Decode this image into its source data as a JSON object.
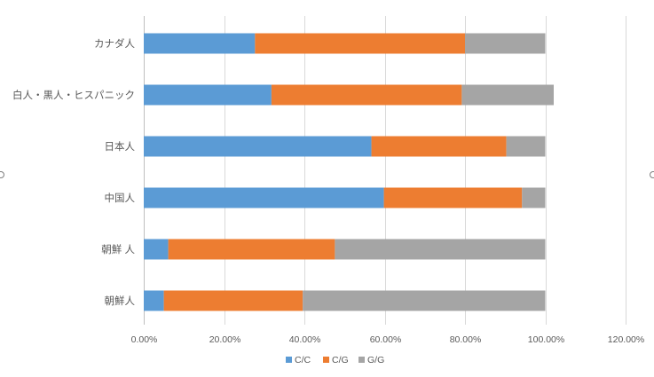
{
  "chart_data": {
    "type": "bar",
    "orientation": "horizontal",
    "stacked": true,
    "categories": [
      "カナダ人",
      "白人・黒人・ヒスパニック",
      "日本人",
      "中国人",
      "朝鮮 人",
      "朝鮮人"
    ],
    "series": [
      {
        "name": "C/C",
        "color": "#5B9BD5",
        "values": [
          27.7,
          31.8,
          56.7,
          59.8,
          6.1,
          5.0
        ]
      },
      {
        "name": "C/G",
        "color": "#ED7D31",
        "values": [
          52.3,
          47.4,
          33.6,
          34.4,
          41.5,
          34.6
        ]
      },
      {
        "name": "G/G",
        "color": "#A5A5A5",
        "values": [
          20.0,
          22.9,
          9.7,
          5.8,
          52.4,
          60.4
        ]
      }
    ],
    "x_ticks": [
      "0.00%",
      "20.00%",
      "40.00%",
      "60.00%",
      "80.00%",
      "100.00%",
      "120.00%"
    ],
    "xlim": [
      0,
      120
    ],
    "grid": true,
    "legend_position": "bottom"
  }
}
